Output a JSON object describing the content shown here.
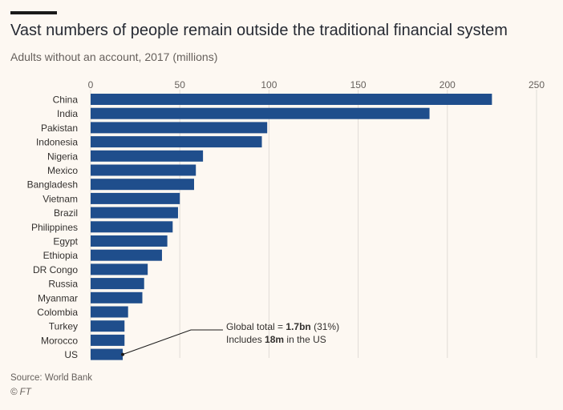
{
  "title": "Vast numbers of people remain outside the traditional financial system",
  "subtitle": "Adults without an account, 2017 (millions)",
  "source": "Source: World Bank",
  "copyright": "© FT",
  "annotation": {
    "line1_prefix": "Global total = ",
    "line1_bold": "1.7bn",
    "line1_suffix": " (31%)",
    "line2_prefix": "Includes ",
    "line2_bold": "18m",
    "line2_suffix": " in the US"
  },
  "colors": {
    "bar": "#1f4e8c",
    "grid": "#e0dbd6",
    "text": "#33302e",
    "muted": "#66605c",
    "background": "#fdf8f2"
  },
  "chart_data": {
    "type": "bar",
    "orientation": "horizontal",
    "title": "Vast numbers of people remain outside the traditional financial system",
    "subtitle": "Adults without an account, 2017 (millions)",
    "xlim": [
      0,
      250
    ],
    "xticks": [
      0,
      50,
      100,
      150,
      200,
      250
    ],
    "xtick_labels": [
      "0",
      "50",
      "100",
      "150",
      "200",
      "250"
    ],
    "grid": true,
    "categories": [
      "China",
      "India",
      "Pakistan",
      "Indonesia",
      "Nigeria",
      "Mexico",
      "Bangladesh",
      "Vietnam",
      "Brazil",
      "Philippines",
      "Egypt",
      "Ethiopia",
      "DR Congo",
      "Russia",
      "Myanmar",
      "Colombia",
      "Turkey",
      "Morocco",
      "US"
    ],
    "values": [
      225,
      190,
      99,
      96,
      63,
      59,
      58,
      50,
      49,
      46,
      43,
      40,
      32,
      30,
      29,
      21,
      19,
      19,
      18
    ]
  }
}
